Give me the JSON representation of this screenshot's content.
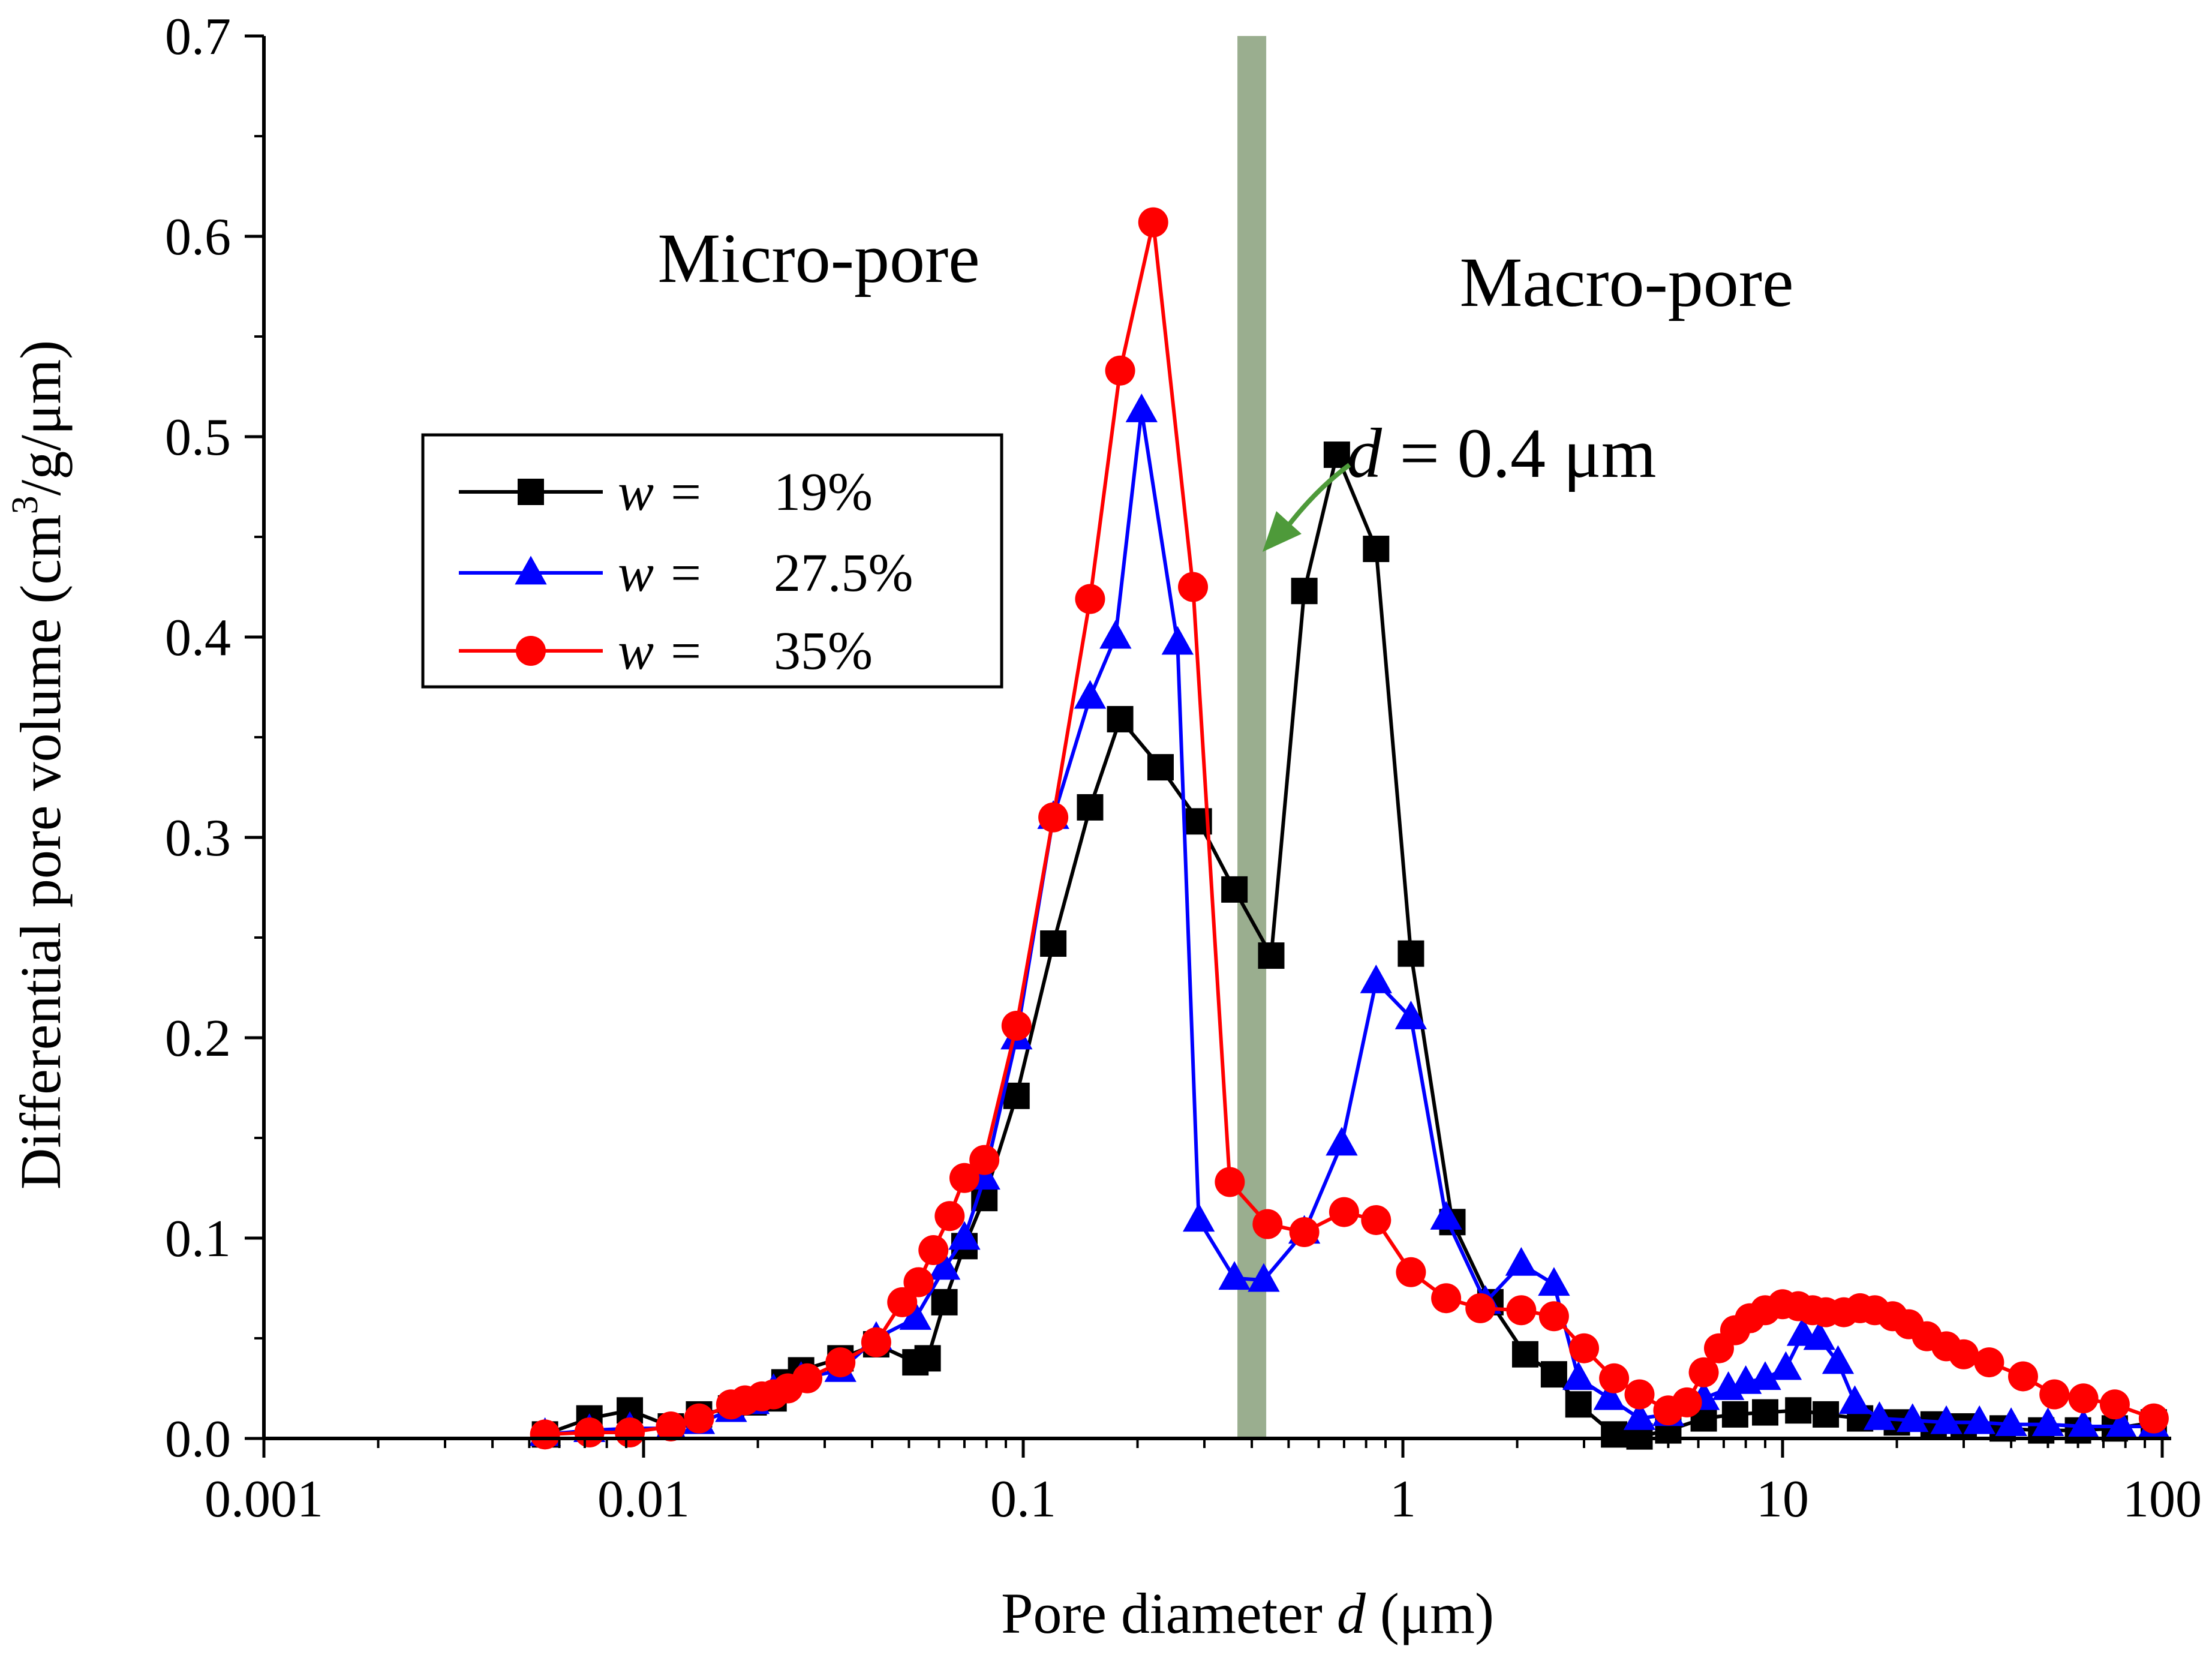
{
  "chart_data": {
    "type": "line",
    "xlabel": {
      "prefix": "Pore diameter ",
      "var": "d",
      "suffix": " (μm)"
    },
    "ylabel": {
      "before": "Differential pore volume (cm",
      "sup": "3",
      "after": "/g/μm)"
    },
    "xscale": "log",
    "xlim": [
      0.001,
      100
    ],
    "ylim": [
      0,
      0.7
    ],
    "x_ticks": [
      {
        "value": 0.001,
        "label": "0.001"
      },
      {
        "value": 0.01,
        "label": "0.01"
      },
      {
        "value": 0.1,
        "label": "0.1"
      },
      {
        "value": 1,
        "label": "1"
      },
      {
        "value": 10,
        "label": "10"
      },
      {
        "value": 100,
        "label": "100"
      }
    ],
    "y_ticks": [
      {
        "value": 0.0,
        "label": "0.0"
      },
      {
        "value": 0.1,
        "label": "0.1"
      },
      {
        "value": 0.2,
        "label": "0.2"
      },
      {
        "value": 0.3,
        "label": "0.3"
      },
      {
        "value": 0.4,
        "label": "0.4"
      },
      {
        "value": 0.5,
        "label": "0.5"
      },
      {
        "value": 0.6,
        "label": "0.6"
      },
      {
        "value": 0.7,
        "label": "0.7"
      }
    ],
    "grid": false,
    "legend_position": "upper-left",
    "boundary": {
      "x": 0.4,
      "color": "#9aae8f"
    },
    "annotations": {
      "micro": "Micro-pore",
      "macro": "Macro-pore",
      "boundary_label": {
        "var": "d",
        "text": " = 0.4 μm"
      },
      "arrow_color": "#4e9a3a"
    },
    "series": [
      {
        "name": "19%",
        "legend_prefix": "w =",
        "color": "#000000",
        "marker": "square",
        "x": [
          0.0055,
          0.0072,
          0.0092,
          0.0118,
          0.014,
          0.017,
          0.0195,
          0.022,
          0.0235,
          0.026,
          0.033,
          0.041,
          0.052,
          0.056,
          0.062,
          0.07,
          0.079,
          0.096,
          0.12,
          0.15,
          0.18,
          0.23,
          0.29,
          0.36,
          0.45,
          0.55,
          0.67,
          0.85,
          1.05,
          1.35,
          1.7,
          2.1,
          2.5,
          2.9,
          3.6,
          4.2,
          5.0,
          6.2,
          7.5,
          9.0,
          11,
          13,
          16,
          20,
          25,
          30,
          38,
          48,
          60,
          75,
          95
        ],
        "y": [
          0.002,
          0.01,
          0.014,
          0.006,
          0.012,
          0.015,
          0.018,
          0.02,
          0.028,
          0.034,
          0.04,
          0.047,
          0.038,
          0.04,
          0.068,
          0.096,
          0.12,
          0.171,
          0.247,
          0.315,
          0.359,
          0.335,
          0.308,
          0.274,
          0.241,
          0.423,
          0.491,
          0.444,
          0.242,
          0.108,
          0.068,
          0.042,
          0.032,
          0.017,
          0.002,
          0.001,
          0.004,
          0.01,
          0.012,
          0.013,
          0.014,
          0.012,
          0.01,
          0.008,
          0.007,
          0.006,
          0.005,
          0.004,
          0.004,
          0.005,
          0.008
        ]
      },
      {
        "name": "27.5%",
        "legend_prefix": "w =",
        "color": "#0000ff",
        "marker": "triangle",
        "x": [
          0.0055,
          0.0072,
          0.0092,
          0.0118,
          0.014,
          0.017,
          0.0195,
          0.022,
          0.026,
          0.033,
          0.041,
          0.052,
          0.062,
          0.07,
          0.079,
          0.096,
          0.12,
          0.15,
          0.175,
          0.205,
          0.255,
          0.29,
          0.36,
          0.43,
          0.55,
          0.69,
          0.85,
          1.05,
          1.3,
          1.65,
          2.05,
          2.5,
          2.9,
          3.5,
          4.2,
          5.0,
          6.2,
          7.2,
          8.0,
          9.0,
          10.2,
          11.3,
          12.5,
          14,
          15.5,
          18,
          22,
          27,
          33,
          40,
          50,
          62,
          78,
          95
        ],
        "y": [
          0.002,
          0.004,
          0.005,
          0.005,
          0.008,
          0.014,
          0.018,
          0.024,
          0.03,
          0.034,
          0.05,
          0.06,
          0.085,
          0.1,
          0.13,
          0.2,
          0.31,
          0.37,
          0.4,
          0.513,
          0.397,
          0.109,
          0.08,
          0.079,
          0.103,
          0.147,
          0.228,
          0.21,
          0.11,
          0.068,
          0.087,
          0.077,
          0.03,
          0.02,
          0.01,
          0.012,
          0.02,
          0.025,
          0.028,
          0.03,
          0.035,
          0.052,
          0.05,
          0.038,
          0.018,
          0.01,
          0.009,
          0.008,
          0.008,
          0.007,
          0.007,
          0.006,
          0.006,
          0.006
        ]
      },
      {
        "name": "35%",
        "legend_prefix": "w =",
        "color": "#ff0000",
        "marker": "circle",
        "x": [
          0.0055,
          0.0072,
          0.0092,
          0.0118,
          0.014,
          0.017,
          0.0185,
          0.0205,
          0.022,
          0.024,
          0.027,
          0.033,
          0.041,
          0.048,
          0.053,
          0.058,
          0.064,
          0.07,
          0.079,
          0.096,
          0.12,
          0.15,
          0.18,
          0.22,
          0.28,
          0.35,
          0.44,
          0.55,
          0.7,
          0.85,
          1.05,
          1.3,
          1.6,
          2.05,
          2.5,
          3.0,
          3.6,
          4.2,
          5.0,
          5.6,
          6.2,
          6.8,
          7.5,
          8.2,
          9.0,
          10,
          11,
          12,
          13,
          14.5,
          16,
          17.5,
          19.5,
          21.5,
          24,
          27,
          30,
          35,
          43,
          52,
          62,
          75,
          95
        ],
        "y": [
          0.002,
          0.003,
          0.003,
          0.006,
          0.01,
          0.017,
          0.019,
          0.021,
          0.022,
          0.025,
          0.03,
          0.038,
          0.048,
          0.068,
          0.078,
          0.094,
          0.111,
          0.13,
          0.139,
          0.206,
          0.31,
          0.419,
          0.533,
          0.607,
          0.425,
          0.128,
          0.107,
          0.103,
          0.113,
          0.109,
          0.083,
          0.07,
          0.065,
          0.064,
          0.061,
          0.045,
          0.03,
          0.022,
          0.014,
          0.018,
          0.033,
          0.045,
          0.054,
          0.06,
          0.064,
          0.067,
          0.066,
          0.064,
          0.063,
          0.063,
          0.065,
          0.064,
          0.061,
          0.057,
          0.051,
          0.046,
          0.042,
          0.038,
          0.031,
          0.022,
          0.02,
          0.017,
          0.01
        ]
      }
    ]
  }
}
